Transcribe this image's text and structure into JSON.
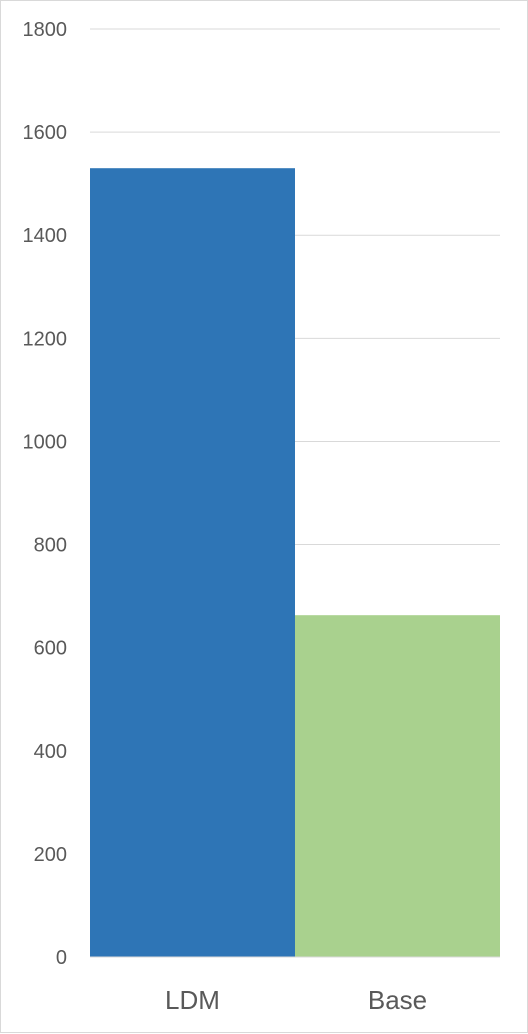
{
  "chart_data": {
    "type": "bar",
    "categories": [
      "LDM",
      "Base"
    ],
    "values": [
      1530,
      663
    ],
    "colors": [
      "#2e75b6",
      "#a9d18e"
    ],
    "ylim": [
      0,
      1800
    ],
    "yticks": [
      0,
      200,
      400,
      600,
      800,
      1000,
      1200,
      1400,
      1600,
      1800
    ],
    "grid": true,
    "gridColor": "#d9d9d9",
    "title": "",
    "xlabel": "",
    "ylabel": ""
  }
}
